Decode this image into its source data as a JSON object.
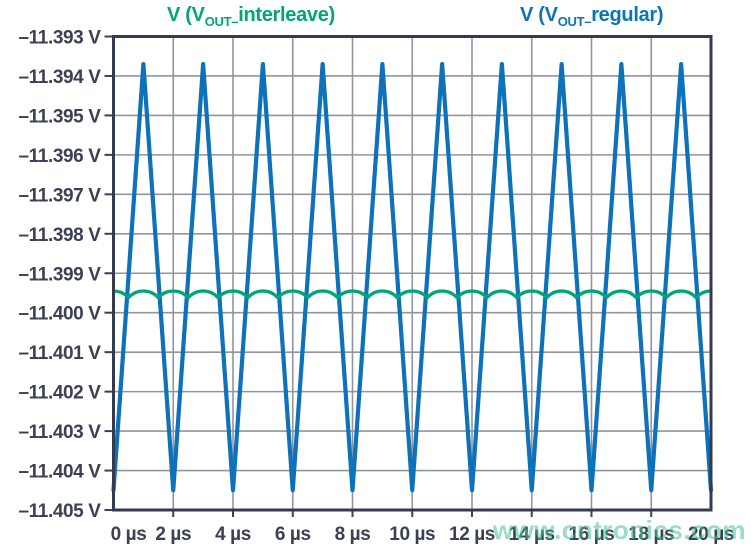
{
  "page": {
    "background": "#ffffff"
  },
  "legend": {
    "interleave": {
      "prefix": "V (V",
      "sub": "OUT–",
      "rest": "interleave)",
      "color": "#00a678"
    },
    "regular": {
      "prefix": "V (V",
      "sub": "OUT–",
      "rest": "regular)",
      "color": "#0d72b9"
    }
  },
  "watermark": {
    "text": "www.cntronics.com",
    "color": "#45c398"
  },
  "chart_data": {
    "type": "line",
    "title": "",
    "xlabel": "",
    "ylabel": "",
    "x_unit": "µs",
    "y_unit": "V",
    "xlim": [
      0,
      20
    ],
    "ylim": [
      -11.405,
      -11.393
    ],
    "grid": true,
    "legend_position": "top",
    "x_ticks": [
      0,
      2,
      4,
      6,
      8,
      10,
      12,
      14,
      16,
      18,
      20
    ],
    "x_tick_labels": [
      "0 µs",
      "2 µs",
      "4 µs",
      "6 µs",
      "8 µs",
      "10 µs",
      "12 µs",
      "14 µs",
      "16 µs",
      "18 µs",
      "20 µs"
    ],
    "y_ticks": [
      -11.393,
      -11.394,
      -11.395,
      -11.396,
      -11.397,
      -11.398,
      -11.399,
      -11.4,
      -11.401,
      -11.402,
      -11.403,
      -11.404,
      -11.405
    ],
    "y_tick_labels": [
      "–11.393 V",
      "–11.394 V",
      "–11.395 V",
      "–11.396 V",
      "–11.397 V",
      "–11.398 V",
      "–11.399 V",
      "–11.400 V",
      "–11.401 V",
      "–11.402 V",
      "–11.403 V",
      "–11.404 V",
      "–11.405 V"
    ],
    "colors": {
      "grid": "#92949e",
      "border": "#343a4f",
      "tick": "#3b4053",
      "text": "#3b4053"
    },
    "series": [
      {
        "name": "V(VOUT_regular)",
        "color": "#0d72b9",
        "shape": "triangle",
        "period_us": 2,
        "min": -11.4045,
        "max": -11.3937,
        "vertices": [
          [
            0,
            -11.4045
          ],
          [
            1,
            -11.3937
          ],
          [
            2,
            -11.4045
          ],
          [
            3,
            -11.3937
          ],
          [
            4,
            -11.4045
          ],
          [
            5,
            -11.3937
          ],
          [
            6,
            -11.4045
          ],
          [
            7,
            -11.3937
          ],
          [
            8,
            -11.4045
          ],
          [
            9,
            -11.3937
          ],
          [
            10,
            -11.4045
          ],
          [
            11,
            -11.3937
          ],
          [
            12,
            -11.4045
          ],
          [
            13,
            -11.3937
          ],
          [
            14,
            -11.4045
          ],
          [
            15,
            -11.3937
          ],
          [
            16,
            -11.4045
          ],
          [
            17,
            -11.3937
          ],
          [
            18,
            -11.4045
          ],
          [
            19,
            -11.3937
          ],
          [
            20,
            -11.4045
          ]
        ]
      },
      {
        "name": "V(VOUT_interleave)",
        "color": "#00a678",
        "shape": "scalloped-ripple",
        "period_us": 1,
        "mean": -11.3995,
        "peak": -11.39945,
        "cusp": -11.39962,
        "peaks_at_us": [
          0,
          1,
          2,
          3,
          4,
          5,
          6,
          7,
          8,
          9,
          10,
          11,
          12,
          13,
          14,
          15,
          16,
          17,
          18,
          19,
          20
        ],
        "cusps_at_us": [
          0.5,
          1.5,
          2.5,
          3.5,
          4.5,
          5.5,
          6.5,
          7.5,
          8.5,
          9.5,
          10.5,
          11.5,
          12.5,
          13.5,
          14.5,
          15.5,
          16.5,
          17.5,
          18.5,
          19.5
        ]
      }
    ]
  }
}
